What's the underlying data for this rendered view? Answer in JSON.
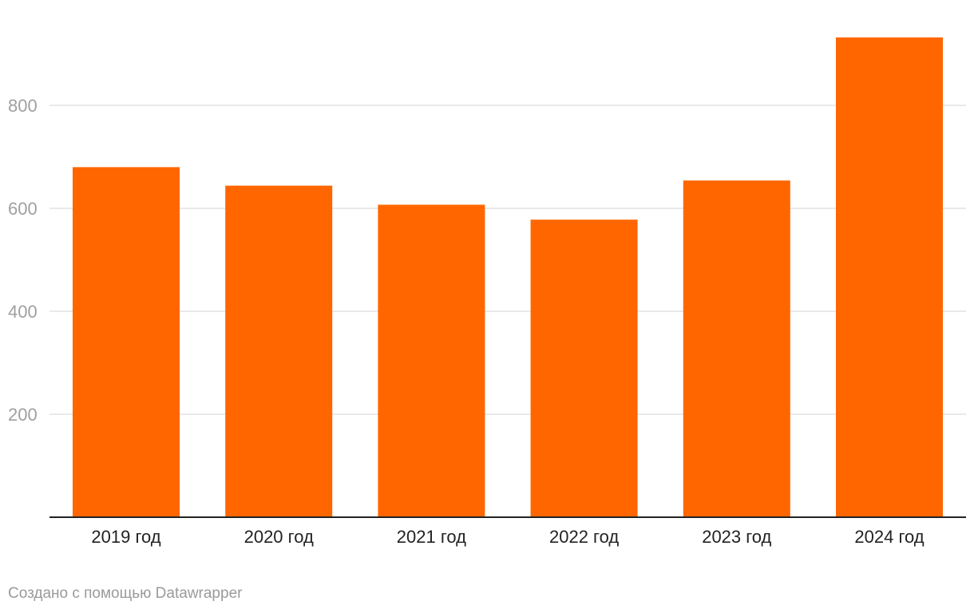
{
  "chart_data": {
    "type": "bar",
    "categories": [
      "2019 год",
      "2020 год",
      "2021 год",
      "2022 год",
      "2023 год",
      "2024 год"
    ],
    "values": [
      680,
      644,
      607,
      578,
      654,
      932
    ],
    "ylim": [
      0,
      1000
    ],
    "yticks": [
      200,
      400,
      600,
      800
    ],
    "grid": true,
    "bar_color": "#ff6600",
    "grid_color": "#e2e2e2",
    "axis_color": "#222222",
    "tick_label_color": "#a0a0a0"
  },
  "footer": {
    "credit": "Создано с помощью Datawrapper"
  }
}
